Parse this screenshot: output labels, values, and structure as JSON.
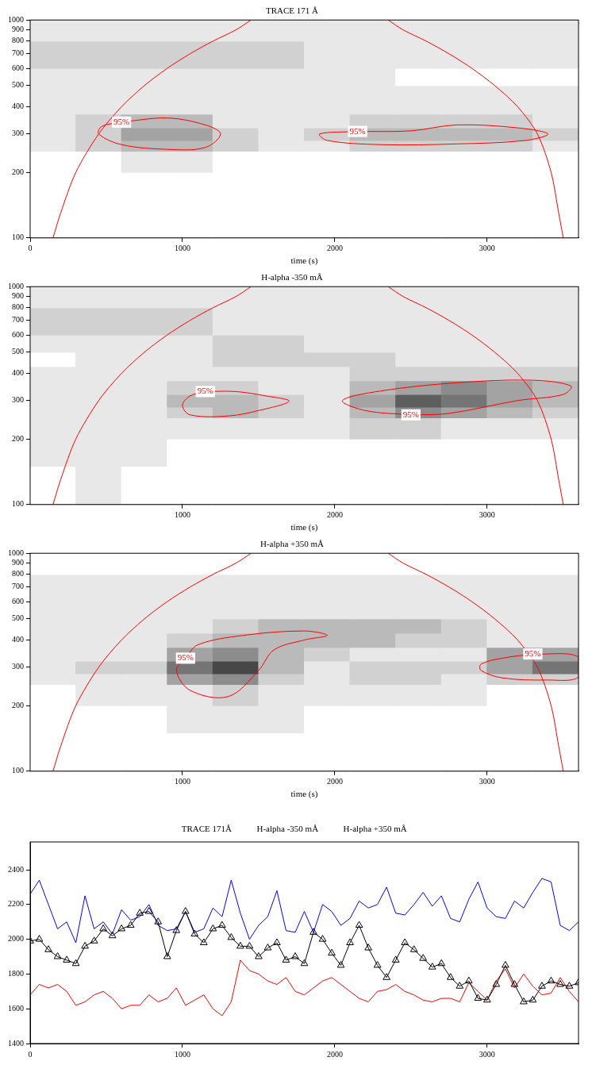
{
  "chart_data": [
    {
      "type": "heatmap",
      "title": "TRACE 171 Å",
      "x_label": "time (s)",
      "xlim": [
        0,
        3600
      ],
      "xticks": [
        0,
        1000,
        2000,
        3000
      ],
      "ylim": [
        100,
        1000
      ],
      "yticks": [
        100,
        200,
        300,
        400,
        500,
        600,
        700,
        800,
        900,
        1000
      ],
      "log": "y",
      "grid": false,
      "x_bins": [
        0,
        300,
        600,
        900,
        1200,
        1500,
        1800,
        2100,
        2400,
        2700,
        3000,
        3300,
        3600
      ],
      "y_bins": [
        100,
        150,
        200,
        250,
        280,
        320,
        370,
        430,
        500,
        600,
        800,
        1000
      ],
      "zlim": [
        0,
        10
      ],
      "cells": [
        [
          0,
          0,
          0,
          0,
          0,
          0,
          0,
          0,
          0,
          0,
          0,
          0
        ],
        [
          0,
          0,
          0,
          0,
          0,
          0,
          0,
          0,
          0,
          0,
          0,
          0
        ],
        [
          0,
          0,
          1,
          1,
          0,
          0,
          0,
          0,
          0,
          0,
          0,
          0
        ],
        [
          1,
          2,
          3,
          3,
          2,
          1,
          1,
          2,
          2,
          2,
          2,
          1
        ],
        [
          1,
          2,
          4,
          4,
          2,
          1,
          2,
          3,
          3,
          3,
          3,
          2
        ],
        [
          1,
          2,
          3,
          3,
          1,
          1,
          1,
          2,
          2,
          2,
          2,
          1
        ],
        [
          1,
          1,
          1,
          1,
          1,
          1,
          1,
          1,
          1,
          1,
          1,
          1
        ],
        [
          1,
          1,
          1,
          1,
          1,
          1,
          1,
          1,
          1,
          1,
          1,
          1
        ],
        [
          1,
          1,
          1,
          1,
          1,
          1,
          1,
          1,
          0,
          0,
          0,
          0
        ],
        [
          2,
          2,
          2,
          2,
          2,
          2,
          1,
          1,
          1,
          1,
          1,
          1
        ],
        [
          1,
          1,
          1,
          1,
          1,
          1,
          1,
          1,
          1,
          1,
          1,
          1
        ]
      ],
      "contours": [
        {
          "label": "95%",
          "color": "#ff0000",
          "x": [
            600,
            900,
            1150,
            1250,
            1150,
            900,
            600,
            450,
            470,
            600
          ],
          "y": [
            340,
            355,
            330,
            300,
            260,
            255,
            268,
            300,
            325,
            340
          ]
        },
        {
          "label": "95%",
          "color": "#ff0000",
          "x": [
            2150,
            2500,
            2800,
            3200,
            3400,
            3250,
            2800,
            2300,
            1950,
            1900,
            2150
          ],
          "y": [
            308,
            310,
            330,
            320,
            300,
            280,
            270,
            268,
            280,
            300,
            308
          ]
        }
      ],
      "cone_of_influence": {
        "color": "#ff0000",
        "x": [
          150,
          200,
          300,
          450,
          600,
          750,
          900,
          1050,
          1200,
          1350,
          1450,
          null,
          2350,
          2450,
          2600,
          2750,
          2900,
          3050,
          3200,
          3330,
          3420,
          3470,
          3500
        ],
        "y": [
          100,
          130,
          200,
          300,
          400,
          500,
          600,
          700,
          800,
          900,
          1000,
          null,
          1000,
          900,
          800,
          700,
          600,
          500,
          400,
          300,
          200,
          130,
          100
        ]
      }
    },
    {
      "type": "heatmap",
      "title": "H-alpha -350 mÅ",
      "x_label": "time (s)",
      "xlim": [
        0,
        3600
      ],
      "xticks": [
        1000,
        2000,
        3000
      ],
      "ylim": [
        100,
        1000
      ],
      "yticks": [
        100,
        200,
        300,
        400,
        500,
        600,
        700,
        800,
        900,
        1000
      ],
      "log": "y",
      "grid": false,
      "x_bins": [
        0,
        300,
        600,
        900,
        1200,
        1500,
        1800,
        2100,
        2400,
        2700,
        3000,
        3300,
        3600
      ],
      "y_bins": [
        100,
        150,
        200,
        250,
        280,
        320,
        370,
        430,
        500,
        600,
        800,
        1000
      ],
      "zlim": [
        0,
        10
      ],
      "cells": [
        [
          0,
          1,
          0,
          0,
          0,
          0,
          0,
          0,
          0,
          0,
          0,
          0
        ],
        [
          1,
          1,
          1,
          0,
          0,
          0,
          0,
          0,
          0,
          0,
          0,
          0
        ],
        [
          1,
          1,
          1,
          1,
          1,
          1,
          1,
          2,
          2,
          1,
          1,
          1
        ],
        [
          1,
          1,
          1,
          2,
          3,
          2,
          1,
          3,
          5,
          4,
          3,
          2
        ],
        [
          1,
          1,
          1,
          3,
          3,
          2,
          1,
          4,
          7,
          6,
          4,
          3
        ],
        [
          1,
          1,
          1,
          2,
          2,
          1,
          1,
          3,
          4,
          5,
          4,
          3
        ],
        [
          1,
          1,
          1,
          1,
          1,
          1,
          1,
          2,
          2,
          2,
          2,
          2
        ],
        [
          0,
          1,
          1,
          1,
          2,
          2,
          2,
          2,
          1,
          1,
          1,
          1
        ],
        [
          1,
          1,
          1,
          1,
          2,
          2,
          1,
          1,
          1,
          1,
          1,
          1
        ],
        [
          2,
          2,
          2,
          2,
          1,
          1,
          1,
          1,
          1,
          1,
          1,
          1
        ],
        [
          1,
          1,
          1,
          1,
          1,
          1,
          1,
          1,
          1,
          1,
          1,
          1
        ]
      ],
      "contours": [
        {
          "label": "95%",
          "color": "#ff0000",
          "x": [
            1150,
            1350,
            1550,
            1700,
            1500,
            1300,
            1050,
            1000,
            1050,
            1150
          ],
          "y": [
            330,
            330,
            315,
            298,
            270,
            255,
            258,
            285,
            315,
            330
          ]
        },
        {
          "label": "95%",
          "color": "#ff0000",
          "x": [
            2500,
            2750,
            3200,
            3500,
            3550,
            3300,
            2800,
            2300,
            2050,
            2200,
            2500
          ],
          "y": [
            258,
            262,
            300,
            320,
            350,
            372,
            362,
            332,
            300,
            270,
            258
          ]
        }
      ],
      "cone_of_influence": {
        "color": "#ff0000",
        "x": [
          150,
          200,
          300,
          450,
          600,
          750,
          900,
          1050,
          1200,
          1350,
          1450,
          null,
          2350,
          2450,
          2600,
          2750,
          2900,
          3050,
          3200,
          3330,
          3420,
          3470,
          3500
        ],
        "y": [
          100,
          130,
          200,
          300,
          400,
          500,
          600,
          700,
          800,
          900,
          1000,
          null,
          1000,
          900,
          800,
          700,
          600,
          500,
          400,
          300,
          200,
          130,
          100
        ]
      }
    },
    {
      "type": "heatmap",
      "title": "H-alpha +350 mÅ",
      "x_label": "time (s)",
      "xlim": [
        0,
        3600
      ],
      "xticks": [
        1000,
        2000,
        3000
      ],
      "ylim": [
        100,
        1000
      ],
      "yticks": [
        100,
        200,
        300,
        400,
        500,
        600,
        700,
        800,
        900,
        1000
      ],
      "log": "y",
      "grid": false,
      "x_bins": [
        0,
        300,
        600,
        900,
        1200,
        1500,
        1800,
        2100,
        2400,
        2700,
        3000,
        3300,
        3600
      ],
      "y_bins": [
        100,
        150,
        200,
        250,
        280,
        320,
        370,
        430,
        500,
        600,
        800,
        1000
      ],
      "zlim": [
        0,
        10
      ],
      "cells": [
        [
          0,
          0,
          0,
          0,
          0,
          0,
          0,
          0,
          0,
          0,
          0,
          0
        ],
        [
          0,
          0,
          0,
          1,
          1,
          1,
          0,
          0,
          0,
          0,
          0,
          0
        ],
        [
          0,
          1,
          1,
          1,
          2,
          1,
          1,
          1,
          1,
          1,
          0,
          0
        ],
        [
          1,
          1,
          1,
          4,
          5,
          2,
          1,
          2,
          2,
          1,
          2,
          2
        ],
        [
          1,
          2,
          2,
          6,
          8,
          3,
          1,
          2,
          2,
          2,
          4,
          6
        ],
        [
          1,
          1,
          1,
          4,
          5,
          3,
          2,
          1,
          1,
          1,
          4,
          4
        ],
        [
          1,
          1,
          1,
          2,
          3,
          3,
          3,
          3,
          2,
          2,
          1,
          1
        ],
        [
          1,
          1,
          1,
          1,
          2,
          3,
          3,
          3,
          3,
          2,
          1,
          1
        ],
        [
          1,
          1,
          1,
          1,
          1,
          1,
          1,
          1,
          1,
          1,
          1,
          1
        ],
        [
          1,
          1,
          1,
          1,
          1,
          1,
          1,
          1,
          1,
          1,
          1,
          1
        ],
        [
          0,
          0,
          0,
          0,
          0,
          0,
          0,
          0,
          0,
          0,
          0,
          0
        ]
      ],
      "contours": [
        {
          "label": "95%",
          "color": "#ff0000",
          "x": [
            1020,
            1100,
            1400,
            1800,
            1950,
            1800,
            1600,
            1500,
            1300,
            1050,
            960,
            1020
          ],
          "y": [
            330,
            380,
            420,
            440,
            420,
            400,
            360,
            290,
            220,
            235,
            290,
            330
          ]
        },
        {
          "label": "95%",
          "color": "#ff0000",
          "x": [
            3300,
            3600,
            3600,
            3400,
            3100,
            2960,
            2960,
            3100,
            3300
          ],
          "y": [
            345,
            335,
            270,
            262,
            268,
            290,
            310,
            330,
            345
          ]
        }
      ],
      "cone_of_influence": {
        "color": "#ff0000",
        "x": [
          150,
          200,
          300,
          450,
          600,
          750,
          900,
          1050,
          1200,
          1350,
          1450,
          null,
          2350,
          2450,
          2600,
          2750,
          2900,
          3050,
          3200,
          3330,
          3420,
          3470,
          3500
        ],
        "y": [
          100,
          130,
          200,
          300,
          400,
          500,
          600,
          700,
          800,
          900,
          1000,
          null,
          1000,
          900,
          800,
          700,
          600,
          500,
          400,
          300,
          200,
          130,
          100
        ]
      }
    },
    {
      "type": "line",
      "legend": "top",
      "grid": false,
      "xlim": [
        0,
        3600
      ],
      "xticks": [
        0,
        1000,
        2000,
        3000
      ],
      "ylim": [
        1400,
        2560
      ],
      "yticks": [
        1400,
        1600,
        1800,
        2000,
        2200,
        2400
      ],
      "x": [
        0,
        60,
        120,
        180,
        240,
        300,
        360,
        420,
        480,
        540,
        600,
        660,
        720,
        780,
        840,
        900,
        960,
        1020,
        1080,
        1140,
        1200,
        1260,
        1320,
        1380,
        1440,
        1500,
        1560,
        1620,
        1680,
        1740,
        1800,
        1860,
        1920,
        1980,
        2040,
        2100,
        2160,
        2220,
        2280,
        2340,
        2400,
        2460,
        2520,
        2580,
        2640,
        2700,
        2760,
        2820,
        2880,
        2940,
        3000,
        3060,
        3120,
        3180,
        3240,
        3300,
        3360,
        3420,
        3480,
        3540,
        3600
      ],
      "series": [
        {
          "name": "TRACE 171Å",
          "color": "#000000",
          "marker": "triangle",
          "line_style": "solid",
          "values": [
            1990,
            2000,
            1940,
            1900,
            1880,
            1860,
            1960,
            1990,
            2060,
            2020,
            2060,
            2080,
            2150,
            2160,
            2100,
            1900,
            2050,
            2160,
            2030,
            1980,
            2060,
            2080,
            2010,
            1960,
            1960,
            1900,
            1950,
            1980,
            1880,
            1900,
            1860,
            2040,
            2000,
            1920,
            1850,
            1980,
            2080,
            1950,
            1850,
            1780,
            1880,
            1980,
            1940,
            1890,
            1840,
            1860,
            1780,
            1730,
            1760,
            1660,
            1650,
            1740,
            1850,
            1740,
            1640,
            1650,
            1730,
            1760,
            1740,
            1730,
            1750
          ]
        },
        {
          "name": "H-alpha -350 mÅ",
          "color": "#0000ff",
          "marker": "none",
          "line_style": "solid",
          "values": [
            2260,
            2340,
            2200,
            2060,
            2100,
            1980,
            2250,
            2060,
            2100,
            2030,
            2170,
            2110,
            2130,
            2200,
            2080,
            2050,
            2060,
            2160,
            2040,
            2060,
            2180,
            2130,
            2340,
            2150,
            2000,
            2080,
            2130,
            2280,
            2050,
            2040,
            2160,
            2040,
            2200,
            2160,
            2080,
            2120,
            2220,
            2180,
            2200,
            2300,
            2150,
            2140,
            2200,
            2270,
            2190,
            2250,
            2120,
            2100,
            2230,
            2330,
            2180,
            2130,
            2120,
            2220,
            2180,
            2270,
            2350,
            2330,
            2080,
            2050,
            2100
          ]
        },
        {
          "name": "H-alpha +350 mÅ",
          "color": "#ff0000",
          "marker": "none",
          "line_style": "solid",
          "values": [
            1680,
            1740,
            1720,
            1740,
            1700,
            1620,
            1640,
            1680,
            1700,
            1660,
            1600,
            1620,
            1620,
            1680,
            1640,
            1660,
            1720,
            1620,
            1650,
            1680,
            1600,
            1560,
            1640,
            1880,
            1820,
            1800,
            1760,
            1740,
            1780,
            1700,
            1680,
            1720,
            1760,
            1780,
            1740,
            1700,
            1660,
            1640,
            1700,
            1710,
            1740,
            1700,
            1680,
            1650,
            1640,
            1660,
            1660,
            1640,
            1750,
            1700,
            1650,
            1760,
            1830,
            1720,
            1800,
            1730,
            1680,
            1690,
            1780,
            1700,
            1640
          ]
        }
      ]
    }
  ]
}
